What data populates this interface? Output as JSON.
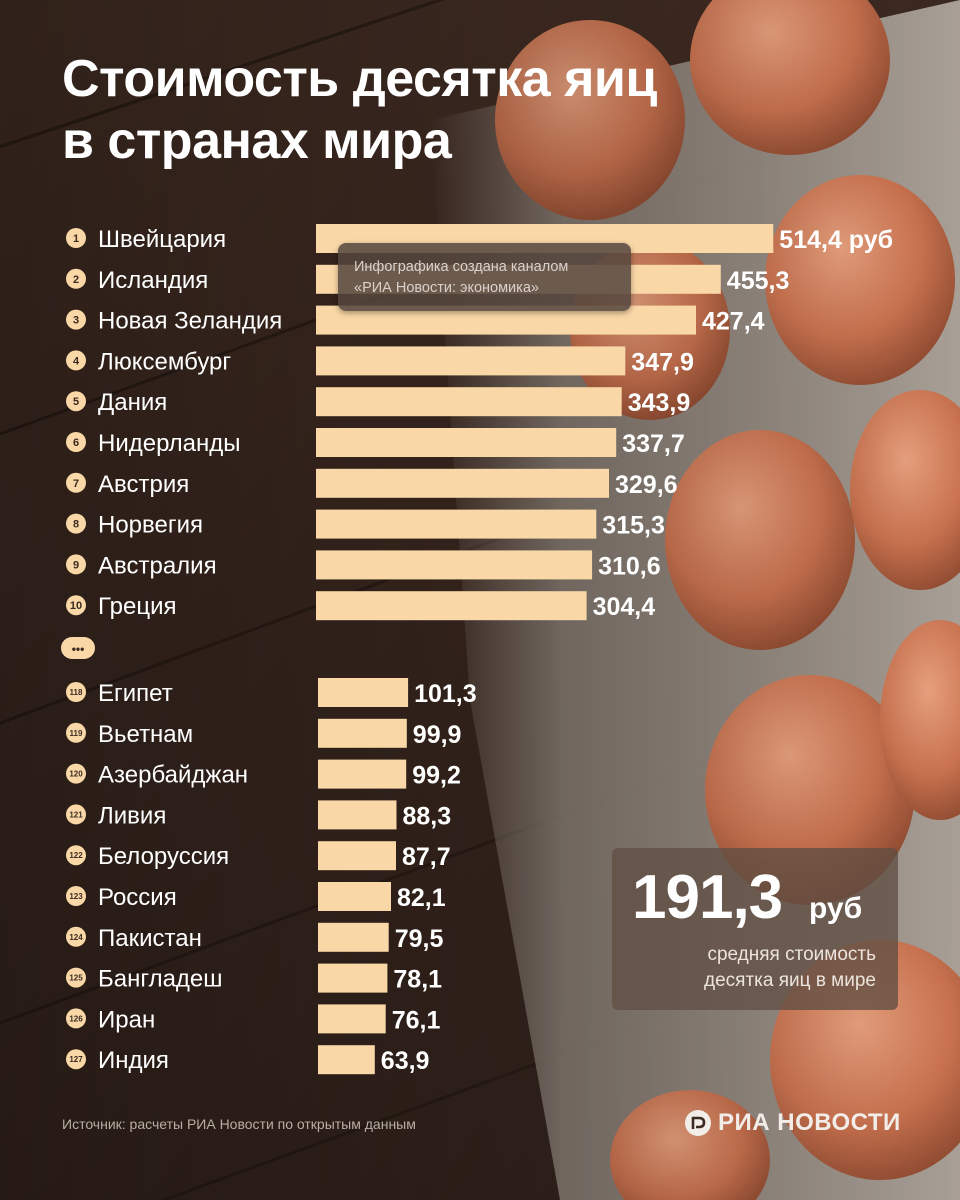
{
  "title": {
    "line1": "Стоимость десятка яиц",
    "line2": "в странах мира"
  },
  "credit": {
    "line1": "Инфографика создана каналом",
    "line2": "«РИА Новости: экономика»"
  },
  "ellipsis": "•••",
  "average": {
    "value": "191,3",
    "unit": "руб",
    "caption_line1": "средняя стоимость",
    "caption_line2": "десятка яиц в мире"
  },
  "source": "Источник: расчеты РИА Новости по открытым данным",
  "brand": "РИА НОВОСТИ",
  "colors": {
    "bar": "#f9d7a6",
    "text": "#ffffff",
    "badge": "#f9d7a6",
    "badge_text": "#3a2a22"
  },
  "chart_data": {
    "type": "bar",
    "orientation": "horizontal",
    "title": "Стоимость десятка яиц в странах мира",
    "unit": "руб",
    "groups": [
      {
        "ranks": [
          "1",
          "2",
          "3",
          "4",
          "5",
          "6",
          "7",
          "8",
          "9",
          "10"
        ],
        "categories": [
          "Швейцария",
          "Исландия",
          "Новая Зеландия",
          "Люксембург",
          "Дания",
          "Нидерланды",
          "Австрия",
          "Норвегия",
          "Австралия",
          "Греция"
        ],
        "values": [
          514.4,
          455.3,
          427.4,
          347.9,
          343.9,
          337.7,
          329.6,
          315.3,
          310.6,
          304.4
        ],
        "labels": [
          "514,4 руб",
          "455,3",
          "427,4",
          "347,9",
          "343,9",
          "337,7",
          "329,6",
          "315,3",
          "310,6",
          "304,4"
        ]
      },
      {
        "ranks": [
          "118",
          "119",
          "120",
          "121",
          "122",
          "123",
          "124",
          "125",
          "126",
          "127"
        ],
        "categories": [
          "Египет",
          "Вьетнам",
          "Азербайджан",
          "Ливия",
          "Белоруссия",
          "Россия",
          "Пакистан",
          "Бангладеш",
          "Иран",
          "Индия"
        ],
        "values": [
          101.3,
          99.9,
          99.2,
          88.3,
          87.7,
          82.1,
          79.5,
          78.1,
          76.1,
          63.9
        ],
        "labels": [
          "101,3",
          "99,9",
          "99,2",
          "88,3",
          "87,7",
          "82,1",
          "79,5",
          "78,1",
          "76,1",
          "63,9"
        ]
      }
    ],
    "average": 191.3,
    "grid": false,
    "legend": "none"
  }
}
